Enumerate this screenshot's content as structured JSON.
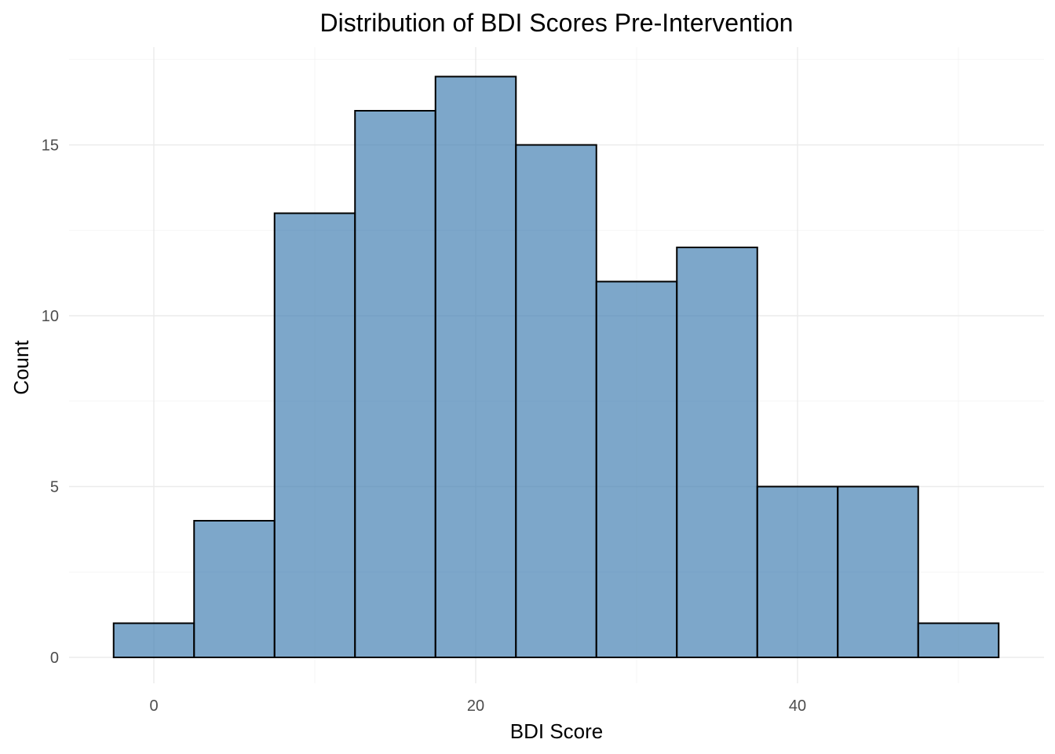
{
  "chart_data": {
    "type": "bar",
    "title": "Distribution of BDI Scores Pre-Intervention",
    "xlabel": "BDI Score",
    "ylabel": "Count",
    "bin_width": 5,
    "bins": [
      {
        "x0": -2.5,
        "x1": 2.5,
        "count": 1
      },
      {
        "x0": 2.5,
        "x1": 7.5,
        "count": 4
      },
      {
        "x0": 7.5,
        "x1": 12.5,
        "count": 13
      },
      {
        "x0": 12.5,
        "x1": 17.5,
        "count": 16
      },
      {
        "x0": 17.5,
        "x1": 22.5,
        "count": 17
      },
      {
        "x0": 22.5,
        "x1": 27.5,
        "count": 15
      },
      {
        "x0": 27.5,
        "x1": 32.5,
        "count": 11
      },
      {
        "x0": 32.5,
        "x1": 37.5,
        "count": 12
      },
      {
        "x0": 37.5,
        "x1": 42.5,
        "count": 5
      },
      {
        "x0": 42.5,
        "x1": 47.5,
        "count": 5
      },
      {
        "x0": 47.5,
        "x1": 52.5,
        "count": 1
      }
    ],
    "x_ticks": [
      0,
      20,
      40
    ],
    "y_ticks": [
      0,
      5,
      10,
      15
    ],
    "xlim": [
      -5,
      55
    ],
    "ylim": [
      0,
      17.85
    ],
    "grid": true,
    "fill_color": "#4682b4",
    "edge_color": "#000000"
  }
}
